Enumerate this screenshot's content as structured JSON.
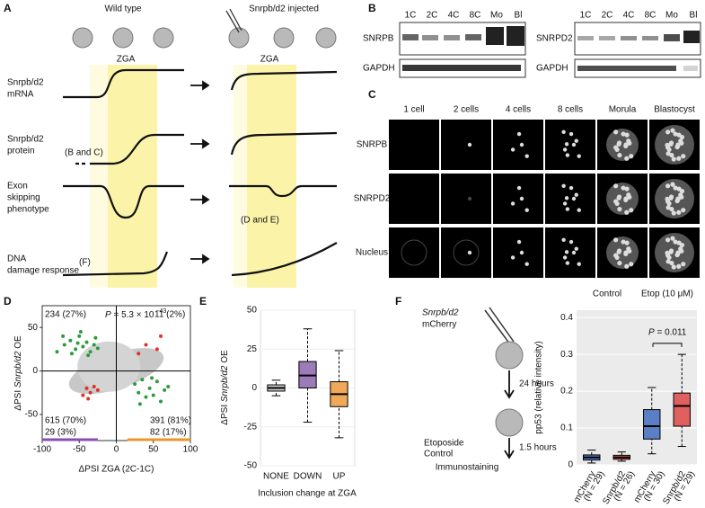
{
  "panels": {
    "A": {
      "letter": "A",
      "wild_type": "Wild type",
      "injected": "Snrpb/d2 injected",
      "zga": [
        "ZGA",
        "ZGA"
      ],
      "rows": [
        [
          "Snrpb/d2",
          "mRNA"
        ],
        [
          "Snrpb/d2",
          "protein"
        ],
        [
          "Exon",
          "skipping",
          "phenotype"
        ],
        [
          "DNA",
          "damage response"
        ]
      ],
      "refs": [
        "(B and C)",
        "(D and E)",
        "(F)"
      ]
    },
    "B": {
      "letter": "B",
      "lanes": [
        "1C",
        "2C",
        "4C",
        "8C",
        "Mo",
        "Bl"
      ],
      "left_rows": [
        "SNRPB",
        "GAPDH"
      ],
      "right_rows": [
        "SNRPD2",
        "GAPDH"
      ]
    },
    "C": {
      "letter": "C",
      "columns": [
        "1 cell",
        "2 cells",
        "4 cells",
        "8 cells",
        "Morula",
        "Blastocyst"
      ],
      "rows": [
        "SNRPB",
        "SNRPD2",
        "Nucleus"
      ]
    },
    "F": {
      "letter": "F",
      "construct": [
        "Snrpb/d2",
        "mCherry"
      ],
      "steps": [
        "24 hours",
        "Etoposide",
        "Control",
        "1.5 hours",
        "Immunostaining"
      ]
    }
  },
  "chart_data": [
    {
      "type": "scatter",
      "letter": "D",
      "xlabel": "ΔPSI ZGA (2C-1C)",
      "ylabel": [
        "ΔPSI",
        "Snrpb/d2",
        "OE"
      ],
      "xlim": [
        -100,
        100
      ],
      "ylim": [
        -80,
        75
      ],
      "xticks": [
        -100,
        -50,
        0,
        50,
        100
      ],
      "yticks": [
        -50,
        0,
        50
      ],
      "annotations": [
        {
          "text": "234 (27%)",
          "color": "#2e9a3e"
        },
        {
          "text": [
            "P",
            "= 5.3 × 10",
            "−43"
          ],
          "color": "#000000"
        },
        {
          "text": "11 (2%)",
          "color": "#e0302a"
        },
        {
          "text": "615 (70%)",
          "color": "#999999"
        },
        {
          "text": "29 (3%)",
          "color": "#e0302a"
        },
        {
          "text": "391 (81%)",
          "color": "#999999"
        },
        {
          "text": "82 (17%)",
          "color": "#2e9a3e"
        }
      ],
      "series": [
        {
          "color": "#2e9a3e",
          "x": [
            -70,
            -62,
            -55,
            -50,
            -45,
            -40,
            -35,
            -30,
            -25,
            -60,
            -48,
            -38,
            -72,
            -28,
            -52,
            -80,
            25,
            30,
            35,
            40,
            45,
            50,
            55,
            60,
            65,
            70,
            32,
            48
          ],
          "values": [
            30,
            35,
            25,
            40,
            28,
            33,
            22,
            30,
            26,
            20,
            45,
            18,
            40,
            38,
            32,
            22,
            -15,
            -25,
            -10,
            -30,
            -20,
            -28,
            -12,
            -35,
            -22,
            -18,
            -38,
            -8
          ]
        },
        {
          "color": "#e0302a",
          "x": [
            -40,
            -35,
            -30,
            -45,
            -25,
            -38,
            40,
            55,
            30,
            60
          ],
          "values": [
            -20,
            -25,
            -18,
            -28,
            -22,
            -32,
            30,
            25,
            20,
            40
          ]
        }
      ]
    },
    {
      "type": "box",
      "letter": "E",
      "ylabel": [
        "ΔPSI",
        "Snrpb/d2",
        "OE"
      ],
      "xlabel": "Inclusion change at ZGA",
      "categories": [
        "NONE",
        "DOWN",
        "UP"
      ],
      "colors": [
        "#cccccc",
        "#9b7bb8",
        "#f0a95a"
      ],
      "ylim": [
        -50,
        50
      ],
      "yticks": [
        -50,
        -25,
        0,
        25,
        50
      ],
      "boxes": [
        {
          "low": -5,
          "q1": -2,
          "median": 0,
          "q3": 2,
          "high": 5
        },
        {
          "low": -22,
          "q1": 0,
          "median": 8,
          "q3": 17,
          "high": 38
        },
        {
          "low": -32,
          "q1": -12,
          "median": -4,
          "q3": 4,
          "high": 24
        }
      ]
    },
    {
      "type": "box",
      "ylabel": "pp53 (relative intensity)",
      "groups": [
        "Control",
        "Etop (10 μM)"
      ],
      "categories": [
        "mCherry",
        "Snrpb/d2",
        "mCherry",
        "Snrpb/d2"
      ],
      "n_labels": [
        "(N = 29)",
        "(N = 26)",
        "(N = 30)",
        "(N = 29)"
      ],
      "colors": [
        "#5b7fc4",
        "#e06060",
        "#5b7fc4",
        "#e06060"
      ],
      "annotation": [
        "P",
        "= 0.011"
      ],
      "ylim": [
        0,
        0.42
      ],
      "yticks": [
        0,
        0.1,
        0.2,
        0.3,
        0.4
      ],
      "boxes": [
        {
          "low": 0.005,
          "q1": 0.013,
          "median": 0.02,
          "q3": 0.027,
          "high": 0.04
        },
        {
          "low": 0.01,
          "q1": 0.015,
          "median": 0.02,
          "q3": 0.026,
          "high": 0.035
        },
        {
          "low": 0.03,
          "q1": 0.07,
          "median": 0.105,
          "q3": 0.15,
          "high": 0.21
        },
        {
          "low": 0.05,
          "q1": 0.105,
          "median": 0.16,
          "q3": 0.195,
          "high": 0.3
        }
      ]
    }
  ]
}
